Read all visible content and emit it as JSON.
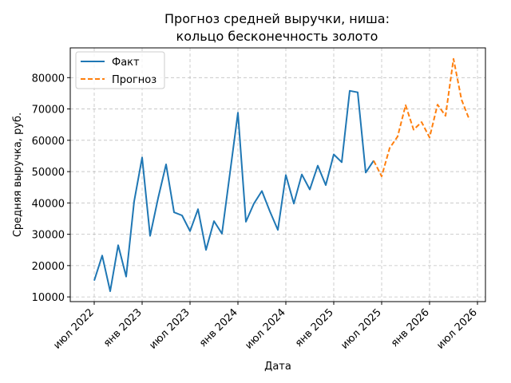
{
  "chart_data": {
    "type": "line",
    "title_line1": "Прогноз средней выручки, ниша:",
    "title_line2": "кольцо бесконечность золото",
    "xlabel": "Дата",
    "ylabel": "Средняя выручка, руб.",
    "ylim": [
      8500,
      89500
    ],
    "y_ticks": [
      10000,
      20000,
      30000,
      40000,
      50000,
      60000,
      70000,
      80000
    ],
    "x_ticks": [
      {
        "date": "2022-07",
        "label": "июл 2022"
      },
      {
        "date": "2023-01",
        "label": "янв 2023"
      },
      {
        "date": "2023-07",
        "label": "июл 2023"
      },
      {
        "date": "2024-01",
        "label": "янв 2024"
      },
      {
        "date": "2024-07",
        "label": "июл 2024"
      },
      {
        "date": "2025-01",
        "label": "янв 2025"
      },
      {
        "date": "2025-07",
        "label": "июл 2025"
      },
      {
        "date": "2026-01",
        "label": "янв 2026"
      },
      {
        "date": "2026-07",
        "label": "июл 2026"
      }
    ],
    "xlim": [
      "2022-04",
      "2026-08"
    ],
    "grid": true,
    "legend_position": "top-left",
    "series": [
      {
        "name": "Факт",
        "style": "solid",
        "color": "#1f77b4",
        "x": [
          "2022-07",
          "2022-08",
          "2022-09",
          "2022-10",
          "2022-11",
          "2022-12",
          "2023-01",
          "2023-02",
          "2023-03",
          "2023-04",
          "2023-05",
          "2023-06",
          "2023-07",
          "2023-08",
          "2023-09",
          "2023-10",
          "2023-11",
          "2023-12",
          "2024-01",
          "2024-02",
          "2024-03",
          "2024-04",
          "2024-05",
          "2024-06",
          "2024-07",
          "2024-08",
          "2024-09",
          "2024-10",
          "2024-11",
          "2024-12",
          "2025-01",
          "2025-02",
          "2025-03",
          "2025-04",
          "2025-05",
          "2025-06"
        ],
        "y": [
          15200,
          23200,
          11800,
          26500,
          16500,
          40500,
          54500,
          29500,
          41500,
          52300,
          37000,
          36000,
          31000,
          38000,
          25000,
          34200,
          30200,
          49500,
          68800,
          34000,
          39800,
          43800,
          37300,
          31400,
          48900,
          39800,
          49100,
          44300,
          51900,
          45700,
          55500,
          53000,
          75800,
          75300,
          49700,
          53500
        ]
      },
      {
        "name": "Прогноз",
        "style": "dashed",
        "color": "#ff7f0e",
        "x": [
          "2025-06",
          "2025-07",
          "2025-08",
          "2025-09",
          "2025-10",
          "2025-11",
          "2025-12",
          "2026-01",
          "2026-02",
          "2026-03",
          "2026-04",
          "2026-05",
          "2026-06"
        ],
        "y": [
          53500,
          48500,
          57500,
          61200,
          71200,
          63400,
          65800,
          60900,
          71400,
          67800,
          86000,
          73000,
          66500
        ]
      }
    ]
  }
}
